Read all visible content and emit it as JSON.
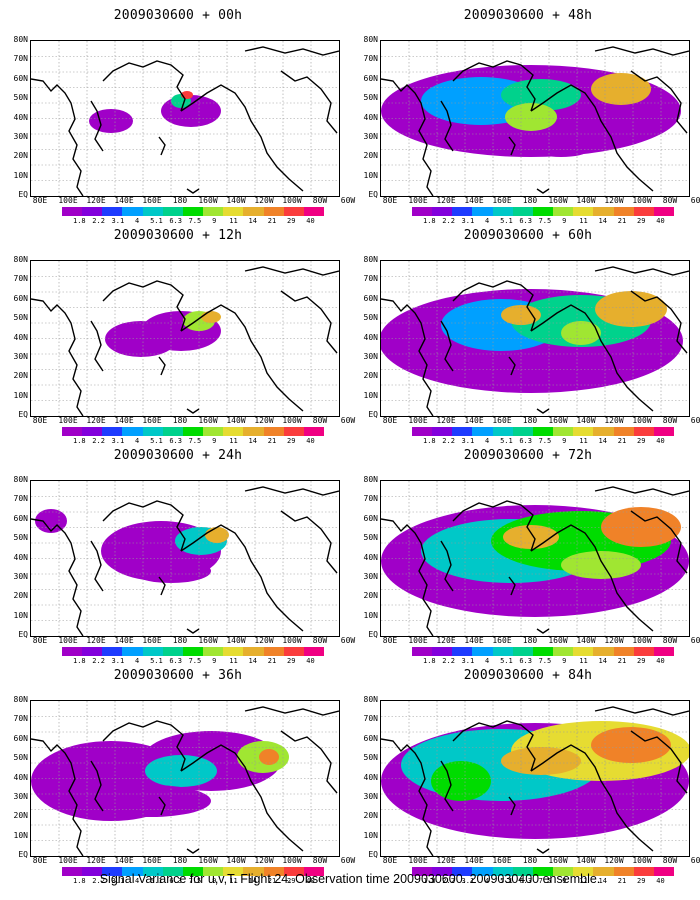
{
  "panels": [
    {
      "title": "2009030600 + 00h",
      "level": 0
    },
    {
      "title": "2009030600 + 48h",
      "level": 4
    },
    {
      "title": "2009030600 + 12h",
      "level": 1
    },
    {
      "title": "2009030600 + 60h",
      "level": 5
    },
    {
      "title": "2009030600 + 24h",
      "level": 2
    },
    {
      "title": "2009030600 + 72h",
      "level": 6
    },
    {
      "title": "2009030600 + 36h",
      "level": 3
    },
    {
      "title": "2009030600 + 84h",
      "level": 7
    }
  ],
  "lat_labels": [
    "80N",
    "70N",
    "60N",
    "50N",
    "40N",
    "30N",
    "20N",
    "10N",
    "EQ"
  ],
  "lon_labels": [
    "80E",
    "100E",
    "120E",
    "140E",
    "160E",
    "180",
    "160W",
    "140W",
    "120W",
    "100W",
    "80W",
    "60W"
  ],
  "colorbar": {
    "labels": [
      "1.8",
      "2.2",
      "3.1",
      "4",
      "5.1",
      "6.3",
      "7.5",
      "9",
      "11",
      "14",
      "21",
      "29",
      "40"
    ],
    "colors": [
      "#a000c8",
      "#8200dc",
      "#1e3cff",
      "#00a0ff",
      "#00c8c8",
      "#00d28c",
      "#00dc00",
      "#a0e632",
      "#e6dc32",
      "#e6af2d",
      "#f08228",
      "#fa3c3c",
      "#f00082"
    ]
  },
  "footer": "Signal Variance for u,v,T. Flight 24. Observation time 2009030600. 2009030400 ensemble."
}
